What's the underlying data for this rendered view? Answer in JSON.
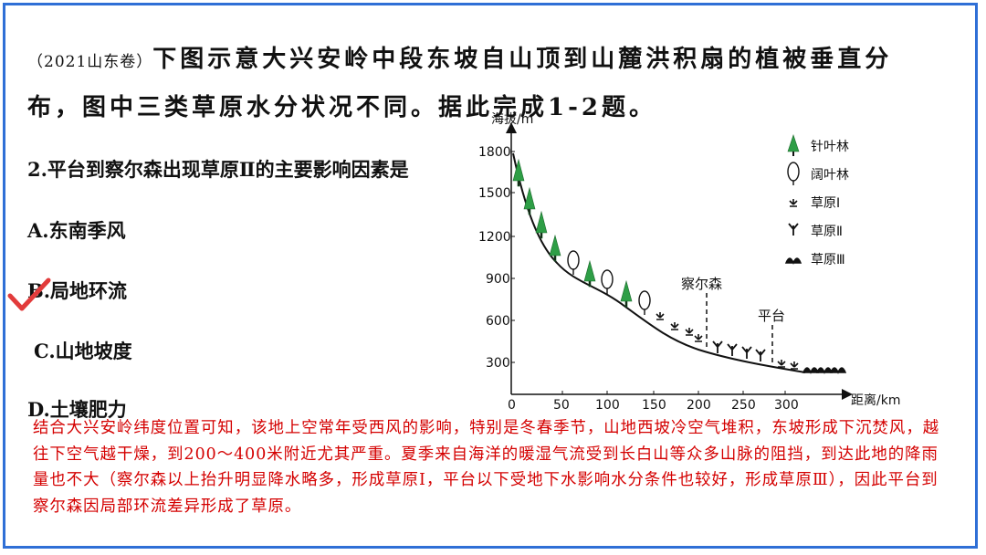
{
  "question": {
    "source": "（2021山东卷）",
    "intro_line1": "下图示意大兴安岭中段东坡自山顶到山麓洪积扇的植被垂直分",
    "intro_line2": "布，图中三类草原水分状况不同。据此完成1-2题。",
    "stem": "2.平台到察尔森出现草原Ⅱ的主要影响因素是",
    "options": [
      {
        "label": "A.东南季风"
      },
      {
        "label": "B.局地环流"
      },
      {
        "label": "C.山地坡度"
      },
      {
        "label": "D.土壤肥力"
      }
    ],
    "correct_option": "B"
  },
  "diagram": {
    "y_axis_label": "海拔/m",
    "x_axis_label": "距离/km",
    "y_ticks": [
      "1800",
      "1500",
      "1200",
      "900",
      "600",
      "300"
    ],
    "x_ticks": [
      "0",
      "50",
      "100",
      "150",
      "200",
      "250",
      "300"
    ],
    "markers": [
      "察尔森",
      "平台"
    ],
    "legend": [
      {
        "icon": "conifer-tree-icon",
        "label": "针叶林"
      },
      {
        "icon": "broadleaf-tree-icon",
        "label": "阔叶林"
      },
      {
        "icon": "grassland-1-icon",
        "label": "草原Ⅰ"
      },
      {
        "icon": "grassland-2-icon",
        "label": "草原Ⅱ"
      },
      {
        "icon": "grassland-3-icon",
        "label": "草原Ⅲ"
      }
    ],
    "colors": {
      "conifer": "#2e9e46",
      "line": "#111111"
    }
  },
  "explanation": {
    "text": "结合大兴安岭纬度位置可知，该地上空常年受西风的影响，特别是冬春季节，山地西坡冷空气堆积，东坡形成下沉焚风，越往下空气越干燥，到200～400米附近尤其严重。夏季来自海洋的暖湿气流受到长白山等众多山脉的阻挡，到达此地的降雨量也不大（察尔森以上抬升明显降水略多，形成草原Ⅰ，平台以下受地下水影响水分条件也较好，形成草原Ⅲ），因此平台到察尔森因局部环流差异形成了草原。",
    "color": "#d40000"
  },
  "frame_color": "#2f6fd6"
}
